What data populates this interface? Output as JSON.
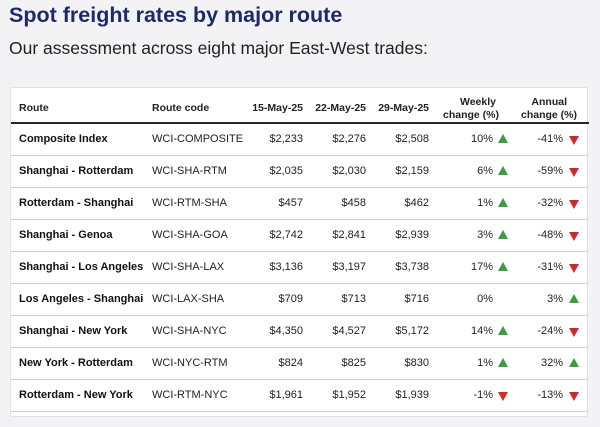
{
  "title": "Spot freight rates by major route",
  "subtitle": "Our assessment across eight major East-West trades:",
  "colors": {
    "title": "#1c2a6b",
    "up_arrow": "#3f9b3f",
    "down_arrow": "#d02b2b",
    "rule": "#262626"
  },
  "chart_data": {
    "type": "table",
    "title": "Spot freight rates by major route",
    "subtitle": "Our assessment across eight major East-West trades:",
    "columns": [
      "Route",
      "Route code",
      "15-May-25",
      "22-May-25",
      "29-May-25",
      "Weekly change (%)",
      "Annual change (%)"
    ],
    "header_lines": {
      "route": "Route",
      "code": "Route code",
      "d1": "15-May-25",
      "d2": "22-May-25",
      "d3": "29-May-25",
      "weekly_1": "Weekly",
      "weekly_2": "change (%)",
      "annual_1": "Annual",
      "annual_2": "change (%)"
    },
    "rows": [
      {
        "route": "Composite Index",
        "code": "WCI-COMPOSITE",
        "d1": "$2,233",
        "d2": "$2,276",
        "d3": "$2,508",
        "weekly": "10%",
        "weekly_dir": "up",
        "annual": "-41%",
        "annual_dir": "down"
      },
      {
        "route": "Shanghai - Rotterdam",
        "code": "WCI-SHA-RTM",
        "d1": "$2,035",
        "d2": "$2,030",
        "d3": "$2,159",
        "weekly": "6%",
        "weekly_dir": "up",
        "annual": "-59%",
        "annual_dir": "down"
      },
      {
        "route": "Rotterdam - Shanghai",
        "code": "WCI-RTM-SHA",
        "d1": "$457",
        "d2": "$458",
        "d3": "$462",
        "weekly": "1%",
        "weekly_dir": "up",
        "annual": "-32%",
        "annual_dir": "down"
      },
      {
        "route": "Shanghai - Genoa",
        "code": "WCI-SHA-GOA",
        "d1": "$2,742",
        "d2": "$2,841",
        "d3": "$2,939",
        "weekly": "3%",
        "weekly_dir": "up",
        "annual": "-48%",
        "annual_dir": "down"
      },
      {
        "route": "Shanghai - Los Angeles",
        "code": "WCI-SHA-LAX",
        "d1": "$3,136",
        "d2": "$3,197",
        "d3": "$3,738",
        "weekly": "17%",
        "weekly_dir": "up",
        "annual": "-31%",
        "annual_dir": "down"
      },
      {
        "route": "Los Angeles - Shanghai",
        "code": "WCI-LAX-SHA",
        "d1": "$709",
        "d2": "$713",
        "d3": "$716",
        "weekly": "0%",
        "weekly_dir": "none",
        "annual": "3%",
        "annual_dir": "up"
      },
      {
        "route": "Shanghai - New York",
        "code": "WCI-SHA-NYC",
        "d1": "$4,350",
        "d2": "$4,527",
        "d3": "$5,172",
        "weekly": "14%",
        "weekly_dir": "up",
        "annual": "-24%",
        "annual_dir": "down"
      },
      {
        "route": "New York - Rotterdam",
        "code": "WCI-NYC-RTM",
        "d1": "$824",
        "d2": "$825",
        "d3": "$830",
        "weekly": "1%",
        "weekly_dir": "up",
        "annual": "32%",
        "annual_dir": "up"
      },
      {
        "route": "Rotterdam - New York",
        "code": "WCI-RTM-NYC",
        "d1": "$1,961",
        "d2": "$1,952",
        "d3": "$1,939",
        "weekly": "-1%",
        "weekly_dir": "down",
        "annual": "-13%",
        "annual_dir": "down"
      }
    ]
  }
}
